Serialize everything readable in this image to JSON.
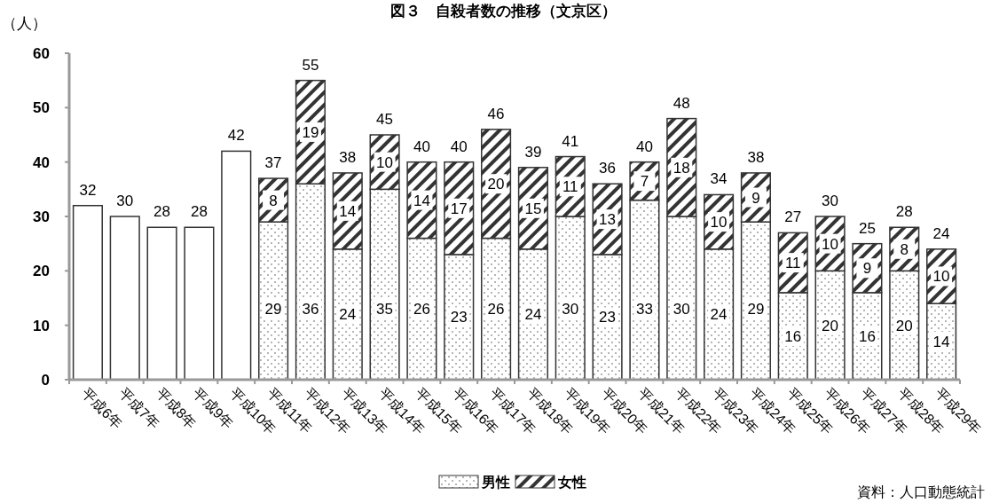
{
  "chart_data": {
    "type": "bar",
    "title": "図３　自殺者数の推移（文京区）",
    "ylabel": "（人）",
    "annotations": [
      "資料：人口動態統計"
    ],
    "categories": [
      "平成6年",
      "平成7年",
      "平成8年",
      "平成9年",
      "平成10年",
      "平成11年",
      "平成12年",
      "平成13年",
      "平成14年",
      "平成15年",
      "平成16年",
      "平成17年",
      "平成18年",
      "平成19年",
      "平成20年",
      "平成21年",
      "平成22年",
      "平成23年",
      "平成24年",
      "平成25年",
      "平成26年",
      "平成27年",
      "平成28年",
      "平成29年"
    ],
    "series": [
      {
        "color": "#ffffff",
        "values": [
          32,
          30,
          28,
          28,
          42,
          null,
          null,
          null,
          null,
          null,
          null,
          null,
          null,
          null,
          null,
          null,
          null,
          null,
          null,
          null,
          null,
          null,
          null,
          null
        ]
      },
      {
        "name": "男性",
        "color": "#333333",
        "values": [
          null,
          null,
          null,
          null,
          null,
          29,
          36,
          24,
          35,
          26,
          23,
          26,
          24,
          30,
          23,
          33,
          30,
          24,
          29,
          16,
          20,
          16,
          20,
          14
        ]
      },
      {
        "name": "女性",
        "color": "#333333",
        "values": [
          null,
          null,
          null,
          null,
          null,
          8,
          19,
          14,
          10,
          14,
          17,
          20,
          15,
          11,
          13,
          7,
          18,
          10,
          9,
          11,
          10,
          9,
          8,
          10
        ]
      }
    ],
    "stacked": true,
    "data_labels": true,
    "totals": [
      null,
      null,
      null,
      null,
      null,
      "37",
      "55",
      "38",
      "45",
      "40",
      "40",
      "46",
      "39",
      "41",
      "36",
      "40",
      "48",
      "34",
      "38",
      "27",
      "30",
      "25",
      "28",
      "24"
    ],
    "ylim": [
      0,
      60
    ],
    "yticks": [
      0,
      10,
      20,
      30,
      40,
      50,
      60
    ],
    "legend": "bottom"
  }
}
